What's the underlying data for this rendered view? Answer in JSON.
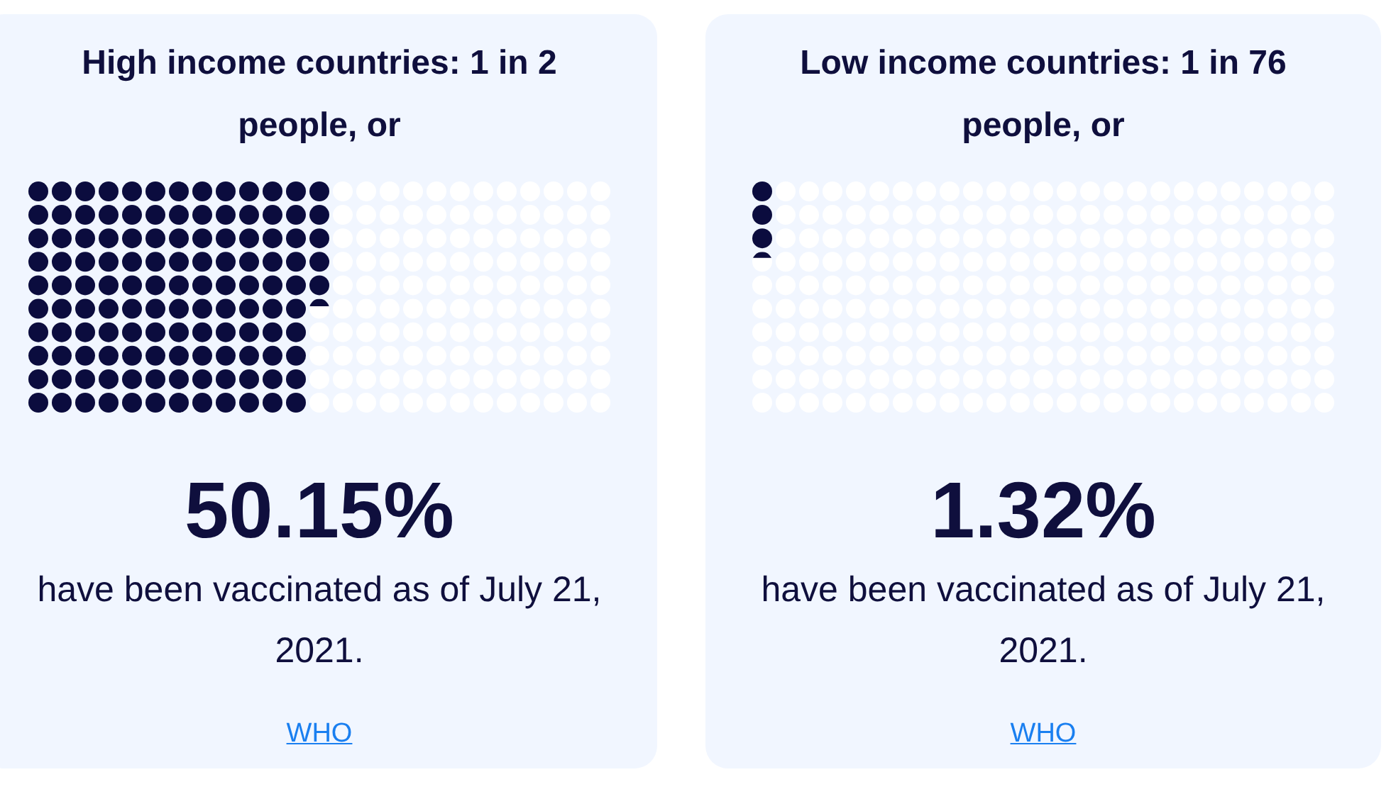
{
  "chart_data": [
    {
      "type": "other",
      "title": "High income countries: 1 in 2 people, or",
      "values": [
        50.15
      ],
      "value_labels": [
        "50.15%"
      ],
      "annotations": [
        "have been vaccinated as of July 21, 2021.",
        "WHO"
      ]
    },
    {
      "type": "other",
      "title": "Low income countries: 1 in 76 people, or",
      "values": [
        1.32
      ],
      "value_labels": [
        "1.32%"
      ],
      "annotations": [
        "have been vaccinated as of July 21, 2021.",
        "WHO"
      ]
    }
  ]
}
